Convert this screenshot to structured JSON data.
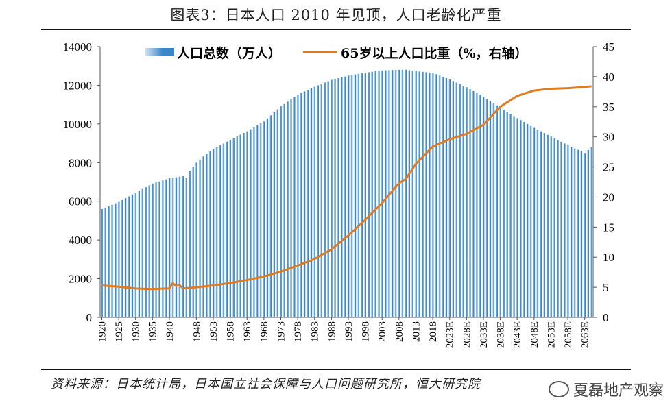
{
  "title": "图表3：日本人口 2010 年见顶，人口老龄化严重",
  "source": "资料来源：日本统计局，日本国立社会保障与人口问题研究所，恒大研究院",
  "watermark": "夏磊地产观察",
  "colors": {
    "bar_light": "#cfe3f4",
    "bar_dark": "#3a87c8",
    "line": "#e07b20",
    "axis": "#555555",
    "rule": "#111111"
  },
  "chart_data": {
    "type": "bar+line",
    "title": "图表3：日本人口 2010 年见顶，人口老龄化严重",
    "x_tick_labels": [
      "1920",
      "1925",
      "1930",
      "1935",
      "1940",
      "1948",
      "1953",
      "1958",
      "1963",
      "1968",
      "1973",
      "1978",
      "1983",
      "1988",
      "1993",
      "1998",
      "2003",
      "2008",
      "2013",
      "2018",
      "2023E",
      "2028E",
      "2033E",
      "2038E",
      "2043E",
      "2048E",
      "2053E",
      "2058E",
      "2063E"
    ],
    "years": {
      "start": 1920,
      "end": 2065
    },
    "left_axis": {
      "min": 0,
      "max": 14000,
      "ticks": [
        0,
        2000,
        4000,
        6000,
        8000,
        10000,
        12000,
        14000
      ]
    },
    "right_axis": {
      "min": 0,
      "max": 45,
      "ticks": [
        0,
        5,
        10,
        15,
        20,
        25,
        30,
        35,
        40,
        45
      ]
    },
    "legend": {
      "bar": "人口总数（万人）",
      "line": "65岁以上人口比重（%，右轴）",
      "placement": "top"
    },
    "population_anchors": [
      [
        1920,
        5600
      ],
      [
        1925,
        5970
      ],
      [
        1930,
        6450
      ],
      [
        1935,
        6920
      ],
      [
        1940,
        7190
      ],
      [
        1944,
        7300
      ],
      [
        1945,
        7200
      ],
      [
        1946,
        7580
      ],
      [
        1948,
        8000
      ],
      [
        1950,
        8320
      ],
      [
        1953,
        8700
      ],
      [
        1958,
        9180
      ],
      [
        1963,
        9620
      ],
      [
        1968,
        10130
      ],
      [
        1973,
        10910
      ],
      [
        1978,
        11520
      ],
      [
        1983,
        11930
      ],
      [
        1988,
        12280
      ],
      [
        1993,
        12500
      ],
      [
        1998,
        12650
      ],
      [
        2003,
        12770
      ],
      [
        2008,
        12800
      ],
      [
        2010,
        12806
      ],
      [
        2013,
        12730
      ],
      [
        2018,
        12640
      ],
      [
        2023,
        12300
      ],
      [
        2028,
        11900
      ],
      [
        2033,
        11400
      ],
      [
        2038,
        10850
      ],
      [
        2043,
        10300
      ],
      [
        2048,
        9800
      ],
      [
        2053,
        9350
      ],
      [
        2058,
        8900
      ],
      [
        2063,
        8500
      ],
      [
        2065,
        8800
      ]
    ],
    "aged_share_anchors": [
      [
        1920,
        5.3
      ],
      [
        1925,
        5.1
      ],
      [
        1930,
        4.8
      ],
      [
        1935,
        4.7
      ],
      [
        1939,
        4.8
      ],
      [
        1940,
        4.8
      ],
      [
        1941,
        5.7
      ],
      [
        1942,
        5.2
      ],
      [
        1943,
        5.4
      ],
      [
        1944,
        4.8
      ],
      [
        1948,
        5.0
      ],
      [
        1953,
        5.3
      ],
      [
        1958,
        5.7
      ],
      [
        1963,
        6.2
      ],
      [
        1968,
        6.8
      ],
      [
        1973,
        7.6
      ],
      [
        1978,
        8.6
      ],
      [
        1983,
        9.7
      ],
      [
        1988,
        11.3
      ],
      [
        1993,
        13.6
      ],
      [
        1998,
        16.2
      ],
      [
        2003,
        19.0
      ],
      [
        2008,
        22.3
      ],
      [
        2010,
        23.0
      ],
      [
        2013,
        25.5
      ],
      [
        2018,
        28.4
      ],
      [
        2023,
        29.6
      ],
      [
        2028,
        30.5
      ],
      [
        2033,
        32.0
      ],
      [
        2038,
        35.0
      ],
      [
        2043,
        36.8
      ],
      [
        2048,
        37.7
      ],
      [
        2053,
        38.0
      ],
      [
        2058,
        38.1
      ],
      [
        2063,
        38.3
      ],
      [
        2065,
        38.4
      ]
    ]
  }
}
